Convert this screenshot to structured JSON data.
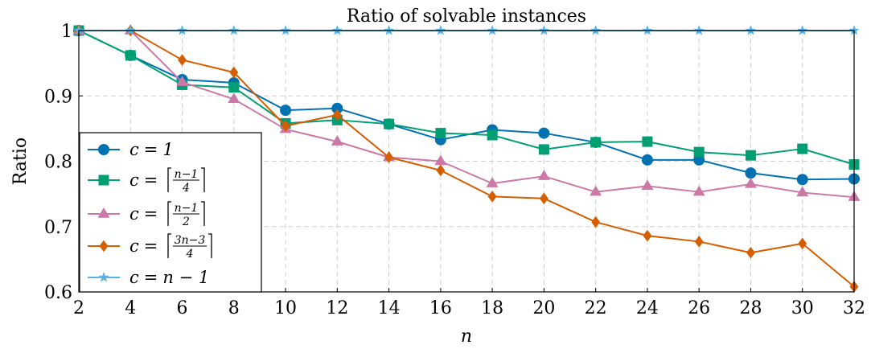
{
  "chart_data": {
    "type": "line",
    "title": "Ratio of solvable instances",
    "xlabel": "n",
    "ylabel": "Ratio",
    "x": [
      2,
      4,
      6,
      8,
      10,
      12,
      14,
      16,
      18,
      20,
      22,
      24,
      26,
      28,
      30,
      32
    ],
    "xticks": [
      "2",
      "4",
      "6",
      "8",
      "10",
      "12",
      "14",
      "16",
      "18",
      "20",
      "22",
      "24",
      "26",
      "28",
      "30",
      "32"
    ],
    "yticks": [
      "0.6",
      "0.7",
      "0.8",
      "0.9",
      "1"
    ],
    "xlim": [
      2,
      32
    ],
    "ylim": [
      0.6,
      1.0
    ],
    "grid": true,
    "legend_position": "left",
    "series": [
      {
        "name": "c = 1",
        "legend": {
          "lhs": "c",
          "op": "=",
          "plain": "1"
        },
        "color": "#0072B2",
        "marker": "circle",
        "values": [
          1.0,
          0.962,
          0.925,
          0.92,
          0.878,
          0.881,
          0.857,
          0.833,
          0.848,
          0.843,
          0.829,
          0.802,
          0.802,
          0.782,
          0.772,
          0.773
        ]
      },
      {
        "name": "c = ⌈(n−1)/4⌉",
        "legend": {
          "lhs": "c",
          "op": "=",
          "num": "n−1",
          "den": "4"
        },
        "color": "#009E73",
        "marker": "square",
        "values": [
          1.0,
          0.962,
          0.917,
          0.913,
          0.858,
          0.863,
          0.857,
          0.843,
          0.84,
          0.818,
          0.829,
          0.83,
          0.814,
          0.809,
          0.819,
          0.795
        ]
      },
      {
        "name": "c = ⌈(n−1)/2⌉",
        "legend": {
          "lhs": "c",
          "op": "=",
          "num": "n−1",
          "den": "2"
        },
        "color": "#CC79A7",
        "marker": "triangle",
        "values": [
          1.0,
          1.0,
          0.921,
          0.895,
          0.849,
          0.83,
          0.806,
          0.8,
          0.766,
          0.777,
          0.753,
          0.762,
          0.753,
          0.765,
          0.752,
          0.745
        ]
      },
      {
        "name": "c = ⌈(3n−3)/4⌉",
        "legend": {
          "lhs": "c",
          "op": "=",
          "num": "3n−3",
          "den": "4"
        },
        "color": "#D55E00",
        "marker": "diamond",
        "values": [
          1.0,
          1.0,
          0.955,
          0.936,
          0.854,
          0.871,
          0.806,
          0.786,
          0.746,
          0.743,
          0.707,
          0.686,
          0.677,
          0.66,
          0.674,
          0.608
        ]
      },
      {
        "name": "c = n − 1",
        "legend": {
          "lhs": "c",
          "op": "=",
          "plain": "n − 1"
        },
        "color": "#56B4E9",
        "marker": "star",
        "values": [
          1.0,
          1.0,
          1.0,
          1.0,
          1.0,
          1.0,
          1.0,
          1.0,
          1.0,
          1.0,
          1.0,
          1.0,
          1.0,
          1.0,
          1.0,
          1.0
        ]
      }
    ]
  }
}
